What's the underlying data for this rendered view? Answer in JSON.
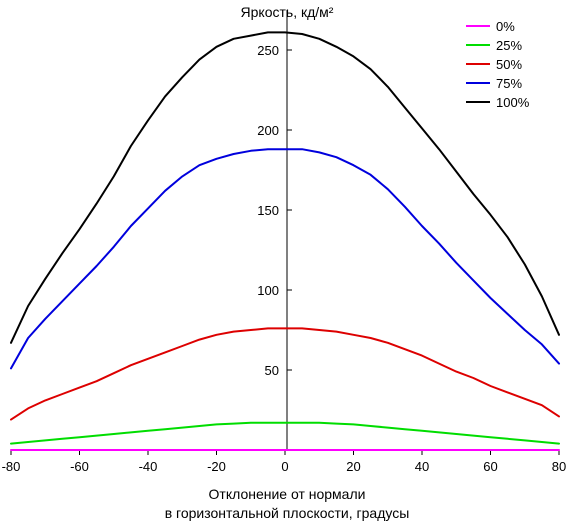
{
  "chart_data": {
    "type": "line",
    "title": "",
    "ylabel": "Яркость, кд/м²",
    "xlabel_line1": "Отклонение от нормали",
    "xlabel_line2": "в горизонтальной плоскости, градусы",
    "xlim": [
      -80,
      80
    ],
    "ylim": [
      0,
      275
    ],
    "xticks": [
      -80,
      -60,
      -40,
      -20,
      0,
      20,
      40,
      60,
      80
    ],
    "yticks": [
      50,
      100,
      150,
      200,
      250
    ],
    "legend_position": "top-right",
    "x": [
      -80,
      -75,
      -70,
      -65,
      -60,
      -55,
      -50,
      -45,
      -40,
      -35,
      -30,
      -25,
      -20,
      -15,
      -10,
      -5,
      0,
      5,
      10,
      15,
      20,
      25,
      30,
      35,
      40,
      45,
      50,
      55,
      60,
      65,
      70,
      75,
      80
    ],
    "series": [
      {
        "name": "0%",
        "color": "#ff00ff",
        "values": [
          0,
          0,
          0,
          0,
          0,
          0,
          0,
          0,
          0,
          0,
          0,
          0,
          0,
          0,
          0,
          0,
          0,
          0,
          0,
          0,
          0,
          0,
          0,
          0,
          0,
          0,
          0,
          0,
          0,
          0,
          0,
          0,
          0
        ]
      },
      {
        "name": "25%",
        "color": "#00dd00",
        "values": [
          4,
          5,
          6,
          7,
          8,
          9,
          10,
          11,
          12,
          13,
          14,
          15,
          16,
          16.5,
          17,
          17,
          17,
          17,
          17,
          16.5,
          16,
          15,
          14,
          13,
          12,
          11,
          10,
          9,
          8,
          7,
          6,
          5,
          4
        ]
      },
      {
        "name": "50%",
        "color": "#dd0000",
        "values": [
          19,
          26,
          31,
          35,
          39,
          43,
          48,
          53,
          57,
          61,
          65,
          69,
          72,
          74,
          75,
          76,
          76,
          76,
          75,
          74,
          72,
          70,
          67,
          63,
          59,
          54,
          49,
          45,
          40,
          36,
          32,
          28,
          21
        ]
      },
      {
        "name": "75%",
        "color": "#0000dd",
        "values": [
          51,
          70,
          82,
          93,
          104,
          115,
          127,
          140,
          151,
          162,
          171,
          178,
          182,
          185,
          187,
          188,
          188,
          188,
          186,
          183,
          178,
          172,
          163,
          152,
          140,
          129,
          117,
          106,
          95,
          85,
          75,
          66,
          54
        ]
      },
      {
        "name": "100%",
        "color": "#000000",
        "values": [
          67,
          90,
          107,
          123,
          138,
          154,
          171,
          190,
          206,
          221,
          233,
          244,
          252,
          257,
          259,
          261,
          261,
          260,
          257,
          252,
          246,
          238,
          227,
          214,
          201,
          188,
          174,
          160,
          147,
          133,
          116,
          96,
          72
        ]
      }
    ]
  }
}
